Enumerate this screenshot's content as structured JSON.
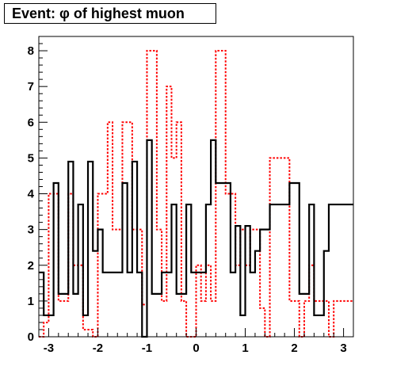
{
  "chart_data": {
    "type": "histogram",
    "title": "Event: φ of highest muon",
    "xlabel": "",
    "ylabel": "",
    "xlim": [
      -3.2,
      3.2
    ],
    "ylim": [
      0,
      8.4
    ],
    "bin_width": 0.1,
    "x_ticks": [
      -3,
      -2,
      -1,
      0,
      1,
      2,
      3
    ],
    "x_tick_labels": [
      "-3",
      "-2",
      "-1",
      "0",
      "1",
      "2",
      "3"
    ],
    "y_ticks": [
      0,
      1,
      2,
      3,
      4,
      5,
      6,
      7,
      8
    ],
    "y_tick_labels": [
      "0",
      "1",
      "2",
      "3",
      "4",
      "5",
      "6",
      "7",
      "8"
    ],
    "grid": false,
    "series": [
      {
        "color": "#000000",
        "style": "solid",
        "values": [
          1.8,
          0.6,
          0.6,
          4.3,
          1.2,
          1.2,
          4.9,
          1.2,
          3.7,
          0.6,
          4.9,
          2.4,
          3.0,
          1.8,
          1.8,
          1.8,
          1.8,
          4.3,
          1.8,
          4.9,
          1.8,
          0.0,
          5.5,
          1.2,
          1.2,
          1.8,
          1.8,
          3.7,
          1.2,
          1.2,
          3.7,
          1.8,
          1.8,
          1.8,
          3.7,
          5.5,
          4.3,
          4.3,
          4.3,
          1.8,
          3.1,
          0.6,
          3.1,
          1.8,
          2.4,
          3.0,
          3.0,
          3.7,
          3.7,
          3.7,
          3.7,
          4.3,
          4.3,
          1.2,
          1.2,
          3.7,
          0.6,
          0.6,
          2.4,
          3.7,
          3.7,
          3.7,
          3.7,
          3.7
        ]
      },
      {
        "color": "#ff0000",
        "style": "dashed",
        "values": [
          0.0,
          0.4,
          4.0,
          4.0,
          1.0,
          1.0,
          4.0,
          2.0,
          2.0,
          0.2,
          0.2,
          0.0,
          4.0,
          4.0,
          6.0,
          3.0,
          3.0,
          6.0,
          6.0,
          3.0,
          3.0,
          0.9,
          8.0,
          8.0,
          3.0,
          1.0,
          7.0,
          5.0,
          6.0,
          1.0,
          0.0,
          0.0,
          2.0,
          1.0,
          2.0,
          1.0,
          8.0,
          8.0,
          4.0,
          4.0,
          2.0,
          3.0,
          2.0,
          3.0,
          3.0,
          0.8,
          0.0,
          5.0,
          5.0,
          5.0,
          5.0,
          1.0,
          1.0,
          0.0,
          1.0,
          2.0,
          1.0,
          1.0,
          1.0,
          0.0,
          1.0,
          1.0,
          1.0,
          1.0
        ]
      }
    ]
  }
}
